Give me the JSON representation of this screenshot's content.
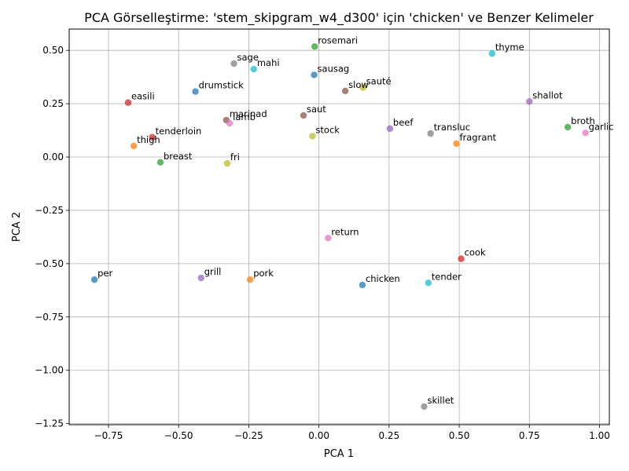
{
  "chart_data": {
    "type": "scatter",
    "title": "PCA Görselleştirme: 'stem_skipgram_w4_d300' için 'chicken' ve Benzer Kelimeler",
    "xlabel": "PCA 1",
    "ylabel": "PCA 2",
    "xlim": [
      -0.89,
      1.035
    ],
    "ylim": [
      -1.255,
      0.6
    ],
    "xticks": [
      -0.75,
      -0.5,
      -0.25,
      0.0,
      0.25,
      0.5,
      0.75,
      1.0
    ],
    "xtick_labels": [
      "−0.75",
      "−0.50",
      "−0.25",
      "0.00",
      "0.25",
      "0.50",
      "0.75",
      "1.00"
    ],
    "yticks": [
      -1.25,
      -1.0,
      -0.75,
      -0.5,
      -0.25,
      0.0,
      0.25,
      0.5
    ],
    "ytick_labels": [
      "−1.25",
      "−1.00",
      "−0.75",
      "−0.50",
      "−0.25",
      "0.00",
      "0.25",
      "0.50"
    ],
    "grid": true,
    "points": [
      {
        "label": "rosemari",
        "x": -0.015,
        "y": 0.518,
        "color": "#2ca02c"
      },
      {
        "label": "thyme",
        "x": 0.617,
        "y": 0.485,
        "color": "#17becf"
      },
      {
        "label": "sage",
        "x": -0.303,
        "y": 0.438,
        "color": "#7f7f7f"
      },
      {
        "label": "mahi",
        "x": -0.232,
        "y": 0.412,
        "color": "#17becf"
      },
      {
        "label": "sausag",
        "x": -0.017,
        "y": 0.385,
        "color": "#1f77b4"
      },
      {
        "label": "slow",
        "x": 0.094,
        "y": 0.31,
        "color": "#8c564b"
      },
      {
        "label": "sauté",
        "x": 0.157,
        "y": 0.325,
        "color": "#bcbd22"
      },
      {
        "label": "drumstick",
        "x": -0.44,
        "y": 0.307,
        "color": "#1f77b4"
      },
      {
        "label": "shallot",
        "x": 0.75,
        "y": 0.26,
        "color": "#9467bd"
      },
      {
        "label": "easili",
        "x": -0.68,
        "y": 0.255,
        "color": "#d62728"
      },
      {
        "label": "saut",
        "x": -0.055,
        "y": 0.195,
        "color": "#8c564b"
      },
      {
        "label": "marinad",
        "x": -0.33,
        "y": 0.173,
        "color": "#8c564b"
      },
      {
        "label": "lamb",
        "x": -0.318,
        "y": 0.158,
        "color": "#e377c2"
      },
      {
        "label": "broth",
        "x": 0.887,
        "y": 0.14,
        "color": "#2ca02c"
      },
      {
        "label": "beef",
        "x": 0.253,
        "y": 0.133,
        "color": "#9467bd"
      },
      {
        "label": "garlic",
        "x": 0.95,
        "y": 0.113,
        "color": "#e377c2"
      },
      {
        "label": "transluc",
        "x": 0.398,
        "y": 0.11,
        "color": "#7f7f7f"
      },
      {
        "label": "stock",
        "x": -0.023,
        "y": 0.098,
        "color": "#bcbd22"
      },
      {
        "label": "tenderloin",
        "x": -0.594,
        "y": 0.093,
        "color": "#d62728"
      },
      {
        "label": "fragrant",
        "x": 0.49,
        "y": 0.063,
        "color": "#ff7f0e"
      },
      {
        "label": "thigh",
        "x": -0.66,
        "y": 0.052,
        "color": "#ff7f0e"
      },
      {
        "label": "breast",
        "x": -0.565,
        "y": -0.025,
        "color": "#2ca02c"
      },
      {
        "label": "fri",
        "x": -0.327,
        "y": -0.03,
        "color": "#bcbd22"
      },
      {
        "label": "return",
        "x": 0.033,
        "y": -0.38,
        "color": "#e377c2"
      },
      {
        "label": "cook",
        "x": 0.507,
        "y": -0.477,
        "color": "#d62728"
      },
      {
        "label": "per",
        "x": -0.8,
        "y": -0.575,
        "color": "#1f77b4"
      },
      {
        "label": "grill",
        "x": -0.42,
        "y": -0.567,
        "color": "#9467bd"
      },
      {
        "label": "pork",
        "x": -0.245,
        "y": -0.575,
        "color": "#ff7f0e"
      },
      {
        "label": "chicken",
        "x": 0.155,
        "y": -0.6,
        "color": "#1f77b4"
      },
      {
        "label": "tender",
        "x": 0.39,
        "y": -0.59,
        "color": "#17becf"
      },
      {
        "label": "skillet",
        "x": 0.375,
        "y": -1.17,
        "color": "#7f7f7f"
      }
    ]
  }
}
